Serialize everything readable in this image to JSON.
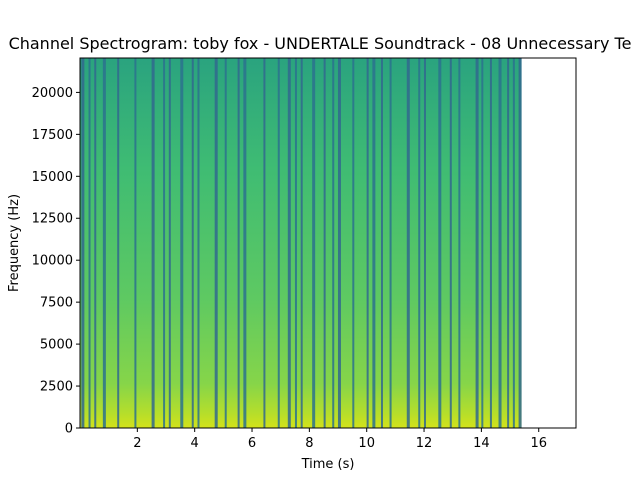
{
  "chart_data": {
    "type": "heatmap",
    "title": "Channel Spectrogram: toby fox - UNDERTALE Soundtrack - 08 Unnecessary Te",
    "xlabel": "Time (s)",
    "ylabel": "Frequency (Hz)",
    "xlim": [
      0,
      17.3
    ],
    "ylim": [
      0,
      22050
    ],
    "x_ticks": [
      2,
      4,
      6,
      8,
      10,
      12,
      14,
      16
    ],
    "y_ticks": [
      0,
      2500,
      5000,
      7500,
      10000,
      12500,
      15000,
      17500,
      20000
    ],
    "x_tick_labels": [
      "2",
      "4",
      "6",
      "8",
      "10",
      "12",
      "14",
      "16"
    ],
    "y_tick_labels": [
      "0",
      "2500",
      "5000",
      "7500",
      "10000",
      "12500",
      "15000",
      "17500",
      "20000"
    ],
    "signal_end_time": 15.4,
    "dark_onsets": [
      0.1,
      0.35,
      0.55,
      0.85,
      1.35,
      1.95,
      2.55,
      2.95,
      3.15,
      3.55,
      3.95,
      4.15,
      4.75,
      5.1,
      5.55,
      5.75,
      6.45,
      6.95,
      7.3,
      7.55,
      7.75,
      8.15,
      8.55,
      8.85,
      9.05,
      9.55,
      10.05,
      10.25,
      10.55,
      10.85,
      11.45,
      11.85,
      12.05,
      12.55,
      12.95,
      13.25,
      13.85,
      14.05,
      14.35,
      14.65,
      14.95,
      15.15,
      15.35
    ],
    "colormap": "viridis",
    "grid": false
  }
}
